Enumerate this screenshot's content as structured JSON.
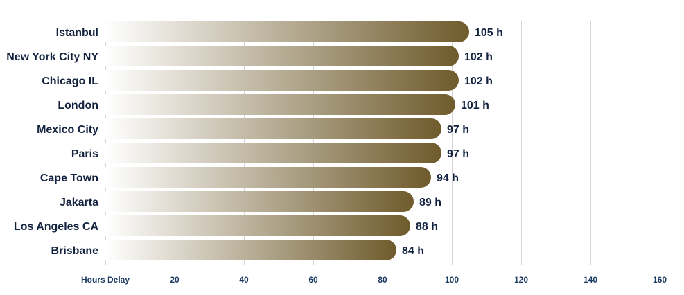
{
  "chart_data": {
    "type": "bar",
    "orientation": "horizontal",
    "categories": [
      "Istanbul",
      "New York City NY",
      "Chicago IL",
      "London",
      "Mexico City",
      "Paris",
      "Cape Town",
      "Jakarta",
      "Los Angeles CA",
      "Brisbane"
    ],
    "values": [
      105,
      102,
      102,
      101,
      97,
      97,
      94,
      89,
      88,
      84
    ],
    "value_labels": [
      "105 h",
      "102 h",
      "102 h",
      "101 h",
      "97 h",
      "97 h",
      "94 h",
      "89 h",
      "88 h",
      "84 h"
    ],
    "xlabel": "Hours Delay",
    "xlim": [
      0,
      160
    ],
    "xticks": [
      20,
      40,
      60,
      80,
      100,
      120,
      140,
      160
    ],
    "grid": true,
    "colors": {
      "bar_start": "#ffffff",
      "bar_end": "#6f5b2c",
      "text": "#13233f",
      "axis_text": "#1c3a63",
      "grid": "#d6d6d6"
    }
  }
}
